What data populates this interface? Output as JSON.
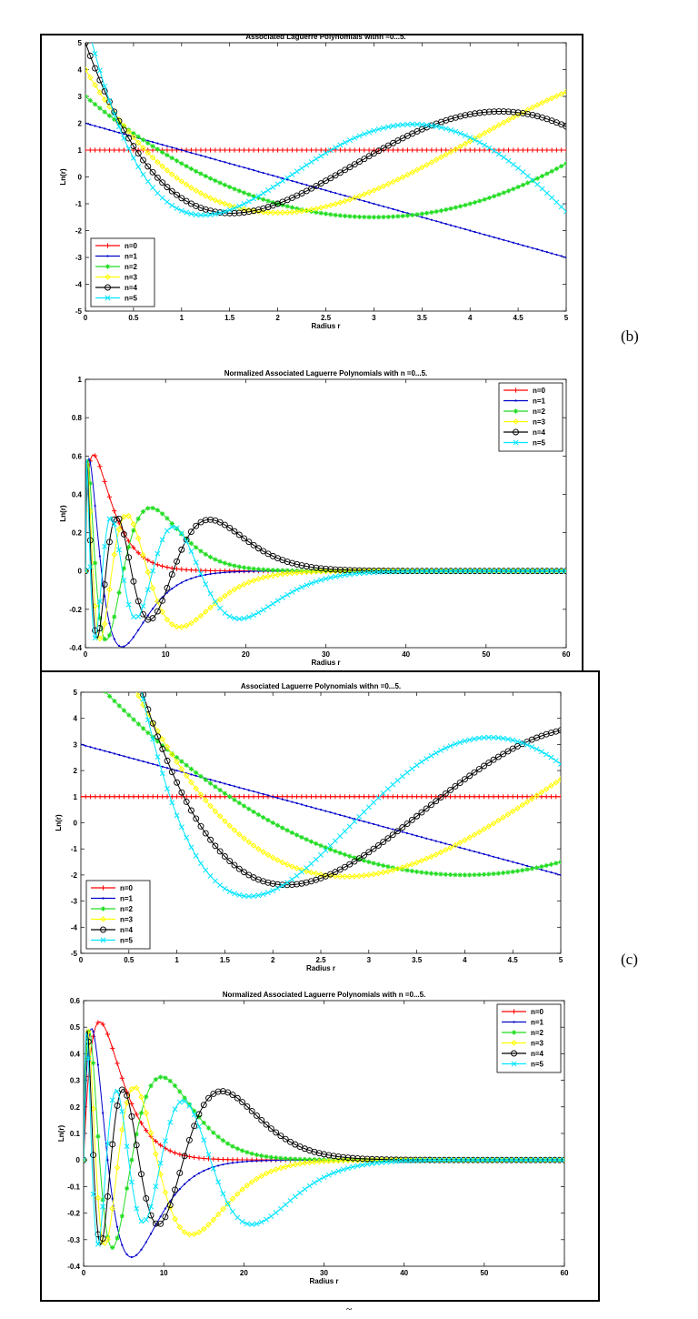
{
  "panel_labels": {
    "b": "(b)",
    "c": "(c)"
  },
  "chart_data": [
    {
      "type": "line",
      "title": "Associated Laguerre Polynomials withn =0...5.",
      "xlabel": "Radius r",
      "ylabel": "Ln(r)",
      "xlim": [
        0,
        5
      ],
      "ylim": [
        -5,
        5
      ],
      "xticks": [
        "0",
        "0.5",
        "1",
        "1.5",
        "2",
        "2.5",
        "3",
        "3.5",
        "4",
        "4.5",
        "5"
      ],
      "yticks": [
        "-5",
        "-4",
        "-3",
        "-2",
        "-1",
        "0",
        "1",
        "2",
        "3",
        "4",
        "5"
      ],
      "legend_placement": "bottom-left",
      "alpha": 1,
      "normalized": false,
      "series": [
        {
          "name": "n=0",
          "color": "#ff0000",
          "marker": "plus",
          "n": 0
        },
        {
          "name": "n=1",
          "color": "#0000cc",
          "marker": "dot",
          "n": 1
        },
        {
          "name": "n=2",
          "color": "#22dd22",
          "marker": "star",
          "n": 2
        },
        {
          "name": "n=3",
          "color": "#ffff00",
          "marker": "diamond",
          "n": 3
        },
        {
          "name": "n=4",
          "color": "#000000",
          "marker": "circle",
          "n": 4
        },
        {
          "name": "n=5",
          "color": "#00e5ff",
          "marker": "x",
          "n": 5
        }
      ]
    },
    {
      "type": "line",
      "title": "Normalized Associated Laguerre Polynomials with n =0...5.",
      "xlabel": "Radius r",
      "ylabel": "Ln(r)",
      "xlim": [
        0,
        60
      ],
      "ylim": [
        -0.4,
        1
      ],
      "xticks": [
        "0",
        "10",
        "20",
        "30",
        "40",
        "50",
        "60"
      ],
      "yticks": [
        "-0.4",
        "-0.2",
        "0",
        "0.2",
        "0.4",
        "0.6",
        "0.8",
        "1"
      ],
      "legend_placement": "top-right",
      "alpha": 1,
      "normalized": true,
      "series": [
        {
          "name": "n=0",
          "color": "#ff0000",
          "marker": "plus",
          "n": 0
        },
        {
          "name": "n=1",
          "color": "#0000cc",
          "marker": "dot",
          "n": 1
        },
        {
          "name": "n=2",
          "color": "#22dd22",
          "marker": "star",
          "n": 2
        },
        {
          "name": "n=3",
          "color": "#ffff00",
          "marker": "diamond",
          "n": 3
        },
        {
          "name": "n=4",
          "color": "#000000",
          "marker": "circle",
          "n": 4
        },
        {
          "name": "n=5",
          "color": "#00e5ff",
          "marker": "x",
          "n": 5
        }
      ]
    },
    {
      "type": "line",
      "title": "Associated Laguerre Polynomials withn =0...5.",
      "xlabel": "Radius r",
      "ylabel": "Ln(r)",
      "xlim": [
        0,
        5
      ],
      "ylim": [
        -5,
        5
      ],
      "xticks": [
        "0",
        "0.5",
        "1",
        "1.5",
        "2",
        "2.5",
        "3",
        "3.5",
        "4",
        "4.5",
        "5"
      ],
      "yticks": [
        "-5",
        "-4",
        "-3",
        "-2",
        "-1",
        "0",
        "1",
        "2",
        "3",
        "4",
        "5"
      ],
      "legend_placement": "bottom-left",
      "alpha": 2,
      "normalized": false,
      "series": [
        {
          "name": "n=0",
          "color": "#ff0000",
          "marker": "plus",
          "n": 0
        },
        {
          "name": "n=1",
          "color": "#0000cc",
          "marker": "dot",
          "n": 1
        },
        {
          "name": "n=2",
          "color": "#22dd22",
          "marker": "star",
          "n": 2
        },
        {
          "name": "n=3",
          "color": "#ffff00",
          "marker": "diamond",
          "n": 3
        },
        {
          "name": "n=4",
          "color": "#000000",
          "marker": "circle",
          "n": 4
        },
        {
          "name": "n=5",
          "color": "#00e5ff",
          "marker": "x",
          "n": 5
        }
      ]
    },
    {
      "type": "line",
      "title": "Normalized Associated Laguerre Polynomials with n =0...5.",
      "xlabel": "Radius r",
      "ylabel": "Ln(r)",
      "xlim": [
        0,
        60
      ],
      "ylim": [
        -0.4,
        0.6
      ],
      "xticks": [
        "0",
        "10",
        "20",
        "30",
        "40",
        "50",
        "60"
      ],
      "yticks": [
        "-0.4",
        "-0.3",
        "-0.2",
        "-0.1",
        "0",
        "0.1",
        "0.2",
        "0.3",
        "0.4",
        "0.5",
        "0.6"
      ],
      "legend_placement": "top-right",
      "alpha": 2,
      "normalized": true,
      "series": [
        {
          "name": "n=0",
          "color": "#ff0000",
          "marker": "plus",
          "n": 0
        },
        {
          "name": "n=1",
          "color": "#0000cc",
          "marker": "dot",
          "n": 1
        },
        {
          "name": "n=2",
          "color": "#22dd22",
          "marker": "star",
          "n": 2
        },
        {
          "name": "n=3",
          "color": "#ffff00",
          "marker": "diamond",
          "n": 3
        },
        {
          "name": "n=4",
          "color": "#000000",
          "marker": "circle",
          "n": 4
        },
        {
          "name": "n=5",
          "color": "#00e5ff",
          "marker": "x",
          "n": 5
        }
      ]
    }
  ],
  "caption": "~"
}
